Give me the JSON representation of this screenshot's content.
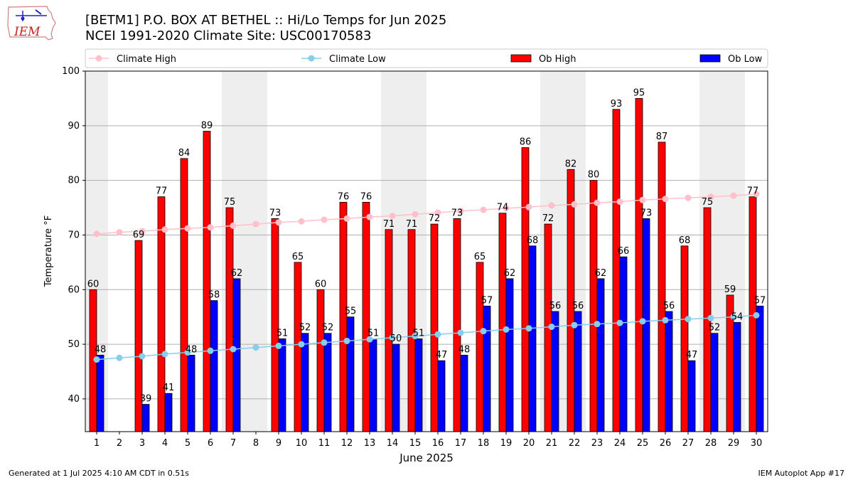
{
  "header": {
    "title_line1": "[BETM1] P.O. BOX AT BETHEL :: Hi/Lo Temps for Jun 2025",
    "title_line2": "NCEI 1991-2020 Climate Site: USC00170583",
    "logo_text": "IEM"
  },
  "footer": {
    "generated": "Generated at 1 Jul 2025 4:10 AM CDT in 0.51s",
    "app": "IEM Autoplot App #17"
  },
  "colors": {
    "ob_high": "#ff0000",
    "ob_low": "#0000ff",
    "climate_high": "#ffc0cb",
    "climate_low": "#87ceeb",
    "weekend_shade": "#eeeeee",
    "grid": "#b0b0b0"
  },
  "chart_data": {
    "type": "bar",
    "xlabel": "June 2025",
    "ylabel": "Temperature °F",
    "ylim": [
      34,
      100
    ],
    "yticks": [
      40,
      50,
      60,
      70,
      80,
      90,
      100
    ],
    "grid": "horizontal",
    "legend_position": "top",
    "categories": [
      "1",
      "2",
      "3",
      "4",
      "5",
      "6",
      "7",
      "8",
      "9",
      "10",
      "11",
      "12",
      "13",
      "14",
      "15",
      "16",
      "17",
      "18",
      "19",
      "20",
      "21",
      "22",
      "23",
      "24",
      "25",
      "26",
      "27",
      "28",
      "29",
      "30"
    ],
    "weekend_spans": [
      [
        1,
        1
      ],
      [
        7,
        8
      ],
      [
        14,
        15
      ],
      [
        21,
        22
      ],
      [
        28,
        29
      ]
    ],
    "series": [
      {
        "name": "Ob High",
        "kind": "bar",
        "values": [
          60,
          null,
          69,
          77,
          84,
          89,
          75,
          null,
          73,
          65,
          60,
          76,
          76,
          71,
          71,
          72,
          73,
          65,
          74,
          86,
          72,
          82,
          80,
          93,
          95,
          87,
          68,
          75,
          59,
          77
        ]
      },
      {
        "name": "Ob Low",
        "kind": "bar",
        "values": [
          48,
          null,
          39,
          41,
          48,
          58,
          62,
          null,
          51,
          52,
          52,
          55,
          51,
          50,
          51,
          47,
          48,
          57,
          62,
          68,
          56,
          56,
          62,
          66,
          73,
          56,
          47,
          52,
          54,
          57
        ]
      },
      {
        "name": "Climate High",
        "kind": "line",
        "values": [
          70.2,
          70.5,
          70.7,
          71.0,
          71.2,
          71.4,
          71.7,
          72.0,
          72.3,
          72.5,
          72.8,
          73.0,
          73.3,
          73.5,
          73.8,
          74.1,
          74.4,
          74.6,
          74.9,
          75.1,
          75.4,
          75.6,
          75.9,
          76.1,
          76.4,
          76.6,
          76.8,
          77.0,
          77.2,
          77.5
        ]
      },
      {
        "name": "Climate Low",
        "kind": "line",
        "values": [
          47.2,
          47.5,
          47.8,
          48.2,
          48.5,
          48.8,
          49.1,
          49.4,
          49.7,
          50.0,
          50.3,
          50.6,
          50.9,
          51.2,
          51.5,
          51.8,
          52.1,
          52.4,
          52.7,
          52.9,
          53.2,
          53.5,
          53.7,
          53.9,
          54.2,
          54.4,
          54.6,
          54.8,
          55.0,
          55.3
        ]
      }
    ],
    "legend": [
      "Climate High",
      "Climate Low",
      "Ob High",
      "Ob Low"
    ]
  }
}
